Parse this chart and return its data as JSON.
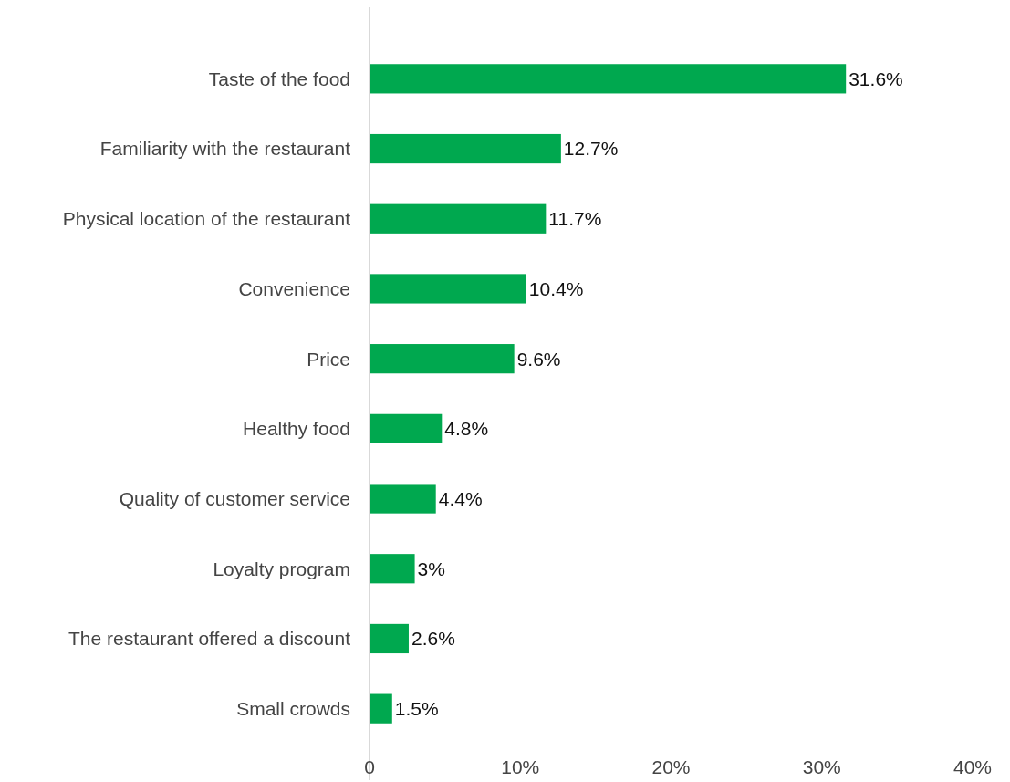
{
  "chart_data": {
    "type": "bar",
    "orientation": "horizontal",
    "categories": [
      "Taste of the food",
      "Familiarity with the restaurant",
      "Physical location of the restaurant",
      "Convenience",
      "Price",
      "Healthy food",
      "Quality of customer service",
      "Loyalty program",
      "The restaurant offered a discount",
      "Small crowds"
    ],
    "values": [
      31.6,
      12.7,
      11.7,
      10.4,
      9.6,
      4.8,
      4.4,
      3,
      2.6,
      1.5
    ],
    "value_labels": [
      "31.6%",
      "12.7%",
      "11.7%",
      "10.4%",
      "9.6%",
      "4.8%",
      "4.4%",
      "3%",
      "2.6%",
      "1.5%"
    ],
    "color": "#00a84f",
    "xlim": [
      0,
      40
    ],
    "xticks": [
      0,
      {
        "value": 10,
        "label": "10%"
      },
      {
        "value": 20,
        "label": "20%"
      },
      {
        "value": 30,
        "label": "30%"
      },
      {
        "value": 40,
        "label": "40%"
      }
    ],
    "grid": false
  }
}
